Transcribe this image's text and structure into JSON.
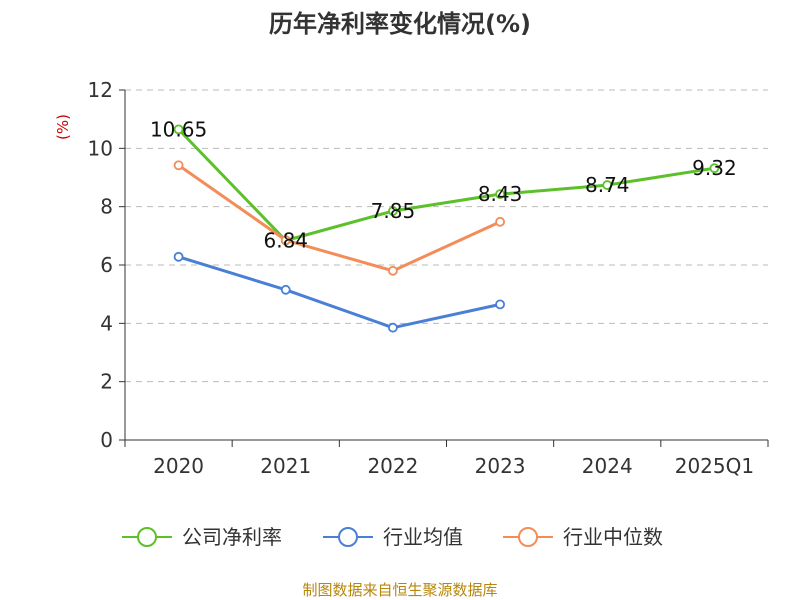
{
  "chart_data": {
    "type": "line",
    "title": "历年净利率变化情况(%)",
    "unit_label": "(%)",
    "categories": [
      "2020",
      "2021",
      "2022",
      "2023",
      "2024",
      "2025Q1"
    ],
    "ylim": [
      0,
      12
    ],
    "yticks": [
      0,
      2,
      4,
      6,
      8,
      10,
      12
    ],
    "grid": true,
    "legend_position": "bottom",
    "series": [
      {
        "name": "公司净利率",
        "color": "#5cc02a",
        "labeled": true,
        "values": [
          10.65,
          6.84,
          7.85,
          8.43,
          8.74,
          9.32
        ],
        "labels": [
          "10.65",
          "6.84",
          "7.85",
          "8.43",
          "8.74",
          "9.32"
        ]
      },
      {
        "name": "行业均值",
        "color": "#4a7fd6",
        "labeled": false,
        "values": [
          6.28,
          5.15,
          3.85,
          4.65,
          null,
          null
        ]
      },
      {
        "name": "行业中位数",
        "color": "#f48c5a",
        "labeled": false,
        "values": [
          9.42,
          6.85,
          5.8,
          7.48,
          null,
          null
        ]
      }
    ],
    "source": "制图数据来自恒生聚源数据库"
  }
}
